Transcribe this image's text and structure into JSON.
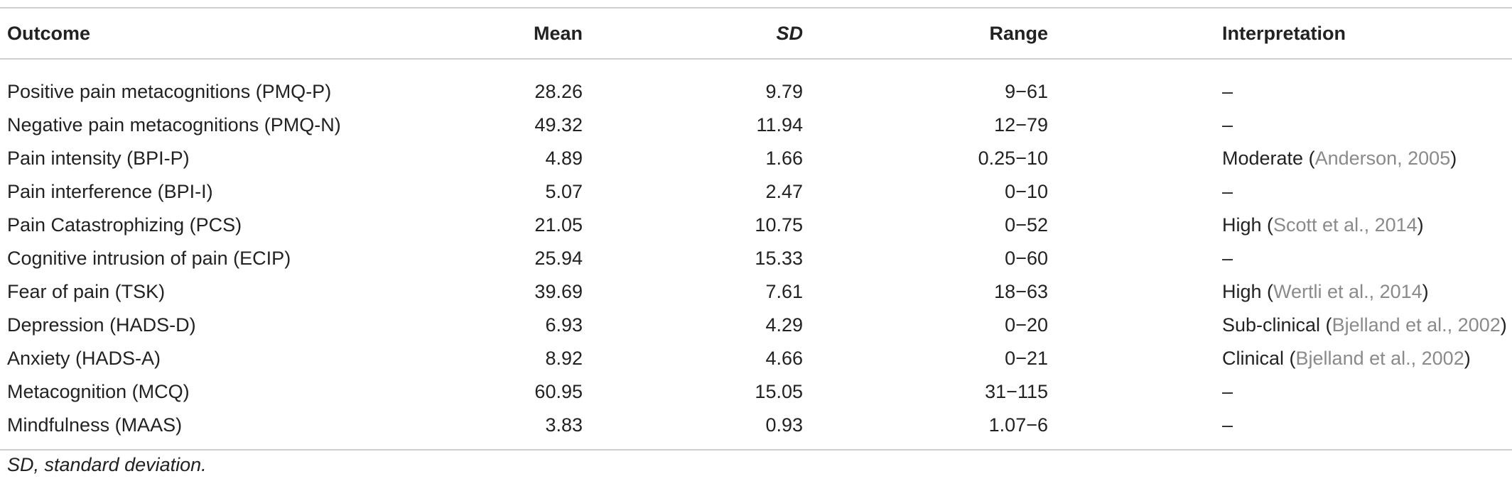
{
  "table": {
    "headers": {
      "outcome": "Outcome",
      "mean": "Mean",
      "sd": "SD",
      "range": "Range",
      "interpretation": "Interpretation"
    },
    "rows": [
      {
        "outcome": "Positive pain metacognitions (PMQ-P)",
        "mean": "28.26",
        "sd": "9.79",
        "range": "9−61",
        "interp_text": "–",
        "interp_cite": "",
        "interp_close": ""
      },
      {
        "outcome": "Negative pain metacognitions (PMQ-N)",
        "mean": "49.32",
        "sd": "11.94",
        "range": "12−79",
        "interp_text": "–",
        "interp_cite": "",
        "interp_close": ""
      },
      {
        "outcome": "Pain intensity (BPI-P)",
        "mean": "4.89",
        "sd": "1.66",
        "range": "0.25−10",
        "interp_text": "Moderate (",
        "interp_cite": "Anderson, 2005",
        "interp_close": ")"
      },
      {
        "outcome": "Pain interference (BPI-I)",
        "mean": "5.07",
        "sd": "2.47",
        "range": "0−10",
        "interp_text": "–",
        "interp_cite": "",
        "interp_close": ""
      },
      {
        "outcome": "Pain Catastrophizing (PCS)",
        "mean": "21.05",
        "sd": "10.75",
        "range": "0−52",
        "interp_text": "High (",
        "interp_cite": "Scott et al., 2014",
        "interp_close": ")"
      },
      {
        "outcome": "Cognitive intrusion of pain (ECIP)",
        "mean": "25.94",
        "sd": "15.33",
        "range": "0−60",
        "interp_text": "–",
        "interp_cite": "",
        "interp_close": ""
      },
      {
        "outcome": "Fear of pain (TSK)",
        "mean": "39.69",
        "sd": "7.61",
        "range": "18−63",
        "interp_text": "High (",
        "interp_cite": "Wertli et al., 2014",
        "interp_close": ")"
      },
      {
        "outcome": "Depression (HADS-D)",
        "mean": "6.93",
        "sd": "4.29",
        "range": "0−20",
        "interp_text": "Sub-clinical (",
        "interp_cite": "Bjelland et al., 2002",
        "interp_close": ")"
      },
      {
        "outcome": "Anxiety (HADS-A)",
        "mean": "8.92",
        "sd": "4.66",
        "range": "0−21",
        "interp_text": "Clinical (",
        "interp_cite": "Bjelland et al., 2002",
        "interp_close": ")"
      },
      {
        "outcome": "Metacognition (MCQ)",
        "mean": "60.95",
        "sd": "15.05",
        "range": "31−115",
        "interp_text": "–",
        "interp_cite": "",
        "interp_close": ""
      },
      {
        "outcome": "Mindfulness (MAAS)",
        "mean": "3.83",
        "sd": "0.93",
        "range": "1.07−6",
        "interp_text": "–",
        "interp_cite": "",
        "interp_close": ""
      }
    ]
  },
  "footnote": "SD, standard deviation.",
  "colors": {
    "text": "#222222",
    "citation": "#8a8a8a",
    "rule": "#cfcfcf"
  }
}
